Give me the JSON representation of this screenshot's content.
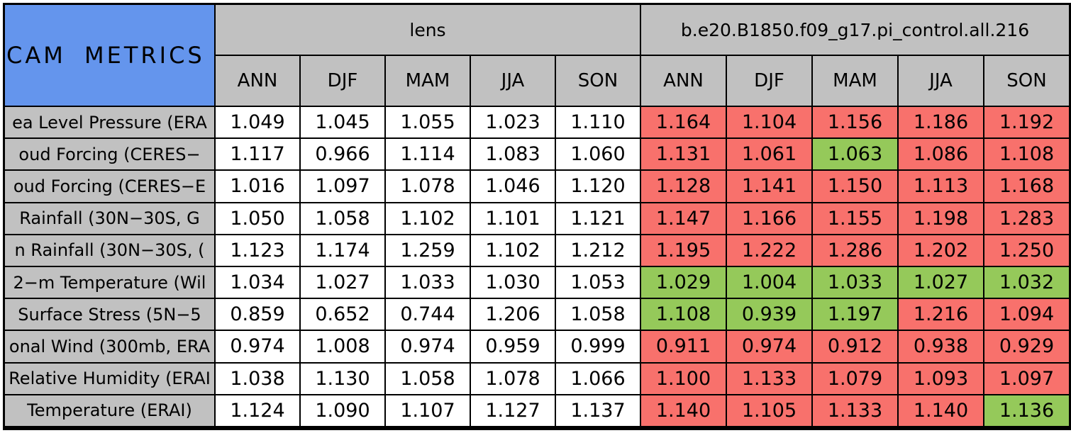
{
  "colors": {
    "blue": "#6495ED",
    "gray": "#C1C1C1",
    "red": "#F8716C",
    "green": "#95C95A",
    "white": "#FFFFFF",
    "border": "#000000"
  },
  "chart_data": {
    "type": "table",
    "title": "CAM METRICS",
    "column_groups": [
      "lens",
      "b.e20.B1850.f09_g17.pi_control.all.216"
    ],
    "columns": [
      "ANN",
      "DJF",
      "MAM",
      "JJA",
      "SON"
    ],
    "rows": [
      {
        "label": "ea Level Pressure (ERA",
        "lens": [
          "1.049",
          "1.045",
          "1.055",
          "1.023",
          "1.110"
        ],
        "model": [
          "1.164",
          "1.104",
          "1.156",
          "1.186",
          "1.192"
        ],
        "model_colors": [
          "red",
          "red",
          "red",
          "red",
          "red"
        ]
      },
      {
        "label": "oud Forcing (CERES−",
        "lens": [
          "1.117",
          "0.966",
          "1.114",
          "1.083",
          "1.060"
        ],
        "model": [
          "1.131",
          "1.061",
          "1.063",
          "1.086",
          "1.108"
        ],
        "model_colors": [
          "red",
          "red",
          "green",
          "red",
          "red"
        ]
      },
      {
        "label": "oud Forcing (CERES−E",
        "lens": [
          "1.016",
          "1.097",
          "1.078",
          "1.046",
          "1.120"
        ],
        "model": [
          "1.128",
          "1.141",
          "1.150",
          "1.113",
          "1.168"
        ],
        "model_colors": [
          "red",
          "red",
          "red",
          "red",
          "red"
        ]
      },
      {
        "label": "Rainfall (30N−30S, G",
        "lens": [
          "1.050",
          "1.058",
          "1.102",
          "1.101",
          "1.121"
        ],
        "model": [
          "1.147",
          "1.166",
          "1.155",
          "1.198",
          "1.283"
        ],
        "model_colors": [
          "red",
          "red",
          "red",
          "red",
          "red"
        ]
      },
      {
        "label": "n Rainfall (30N−30S, (",
        "lens": [
          "1.123",
          "1.174",
          "1.259",
          "1.102",
          "1.212"
        ],
        "model": [
          "1.195",
          "1.222",
          "1.286",
          "1.202",
          "1.250"
        ],
        "model_colors": [
          "red",
          "red",
          "red",
          "red",
          "red"
        ]
      },
      {
        "label": "2−m Temperature (Wil",
        "lens": [
          "1.034",
          "1.027",
          "1.033",
          "1.030",
          "1.053"
        ],
        "model": [
          "1.029",
          "1.004",
          "1.033",
          "1.027",
          "1.032"
        ],
        "model_colors": [
          "green",
          "green",
          "green",
          "green",
          "green"
        ]
      },
      {
        "label": "Surface Stress (5N−5",
        "lens": [
          "0.859",
          "0.652",
          "0.744",
          "1.206",
          "1.058"
        ],
        "model": [
          "1.108",
          "0.939",
          "1.197",
          "1.216",
          "1.094"
        ],
        "model_colors": [
          "green",
          "green",
          "green",
          "red",
          "red"
        ]
      },
      {
        "label": "onal Wind (300mb, ERA",
        "lens": [
          "0.974",
          "1.008",
          "0.974",
          "0.959",
          "0.999"
        ],
        "model": [
          "0.911",
          "0.974",
          "0.912",
          "0.938",
          "0.929"
        ],
        "model_colors": [
          "red",
          "red",
          "red",
          "red",
          "red"
        ]
      },
      {
        "label": "Relative Humidity (ERAI",
        "lens": [
          "1.038",
          "1.130",
          "1.058",
          "1.078",
          "1.066"
        ],
        "model": [
          "1.100",
          "1.133",
          "1.079",
          "1.093",
          "1.097"
        ],
        "model_colors": [
          "red",
          "red",
          "red",
          "red",
          "red"
        ]
      },
      {
        "label": "Temperature (ERAI)",
        "lens": [
          "1.124",
          "1.090",
          "1.107",
          "1.127",
          "1.137"
        ],
        "model": [
          "1.140",
          "1.105",
          "1.133",
          "1.140",
          "1.136"
        ],
        "model_colors": [
          "red",
          "red",
          "red",
          "red",
          "green"
        ]
      }
    ]
  }
}
